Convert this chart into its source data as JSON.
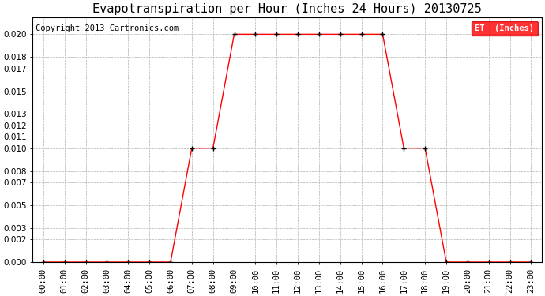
{
  "title": "Evapotranspiration per Hour (Inches 24 Hours) 20130725",
  "copyright": "Copyright 2013 Cartronics.com",
  "legend_label": "ET  (Inches)",
  "legend_bg": "#ff0000",
  "legend_text_color": "#ffffff",
  "line_color": "#ff0000",
  "marker_color": "#000000",
  "background_color": "#ffffff",
  "grid_color": "#b0b0b0",
  "hours": [
    0,
    1,
    2,
    3,
    4,
    5,
    6,
    7,
    8,
    9,
    10,
    11,
    12,
    13,
    14,
    15,
    16,
    17,
    18,
    19,
    20,
    21,
    22,
    23
  ],
  "values": [
    0.0,
    0.0,
    0.0,
    0.0,
    0.0,
    0.0,
    0.0,
    0.01,
    0.01,
    0.02,
    0.02,
    0.02,
    0.02,
    0.02,
    0.02,
    0.02,
    0.02,
    0.01,
    0.01,
    0.0,
    0.0,
    0.0,
    0.0,
    0.0
  ],
  "ylim": [
    0.0,
    0.0215
  ],
  "yticks": [
    0.0,
    0.002,
    0.003,
    0.005,
    0.007,
    0.008,
    0.01,
    0.011,
    0.012,
    0.013,
    0.015,
    0.017,
    0.018,
    0.02
  ],
  "title_fontsize": 11,
  "tick_fontsize": 7.5,
  "copyright_fontsize": 7.5
}
